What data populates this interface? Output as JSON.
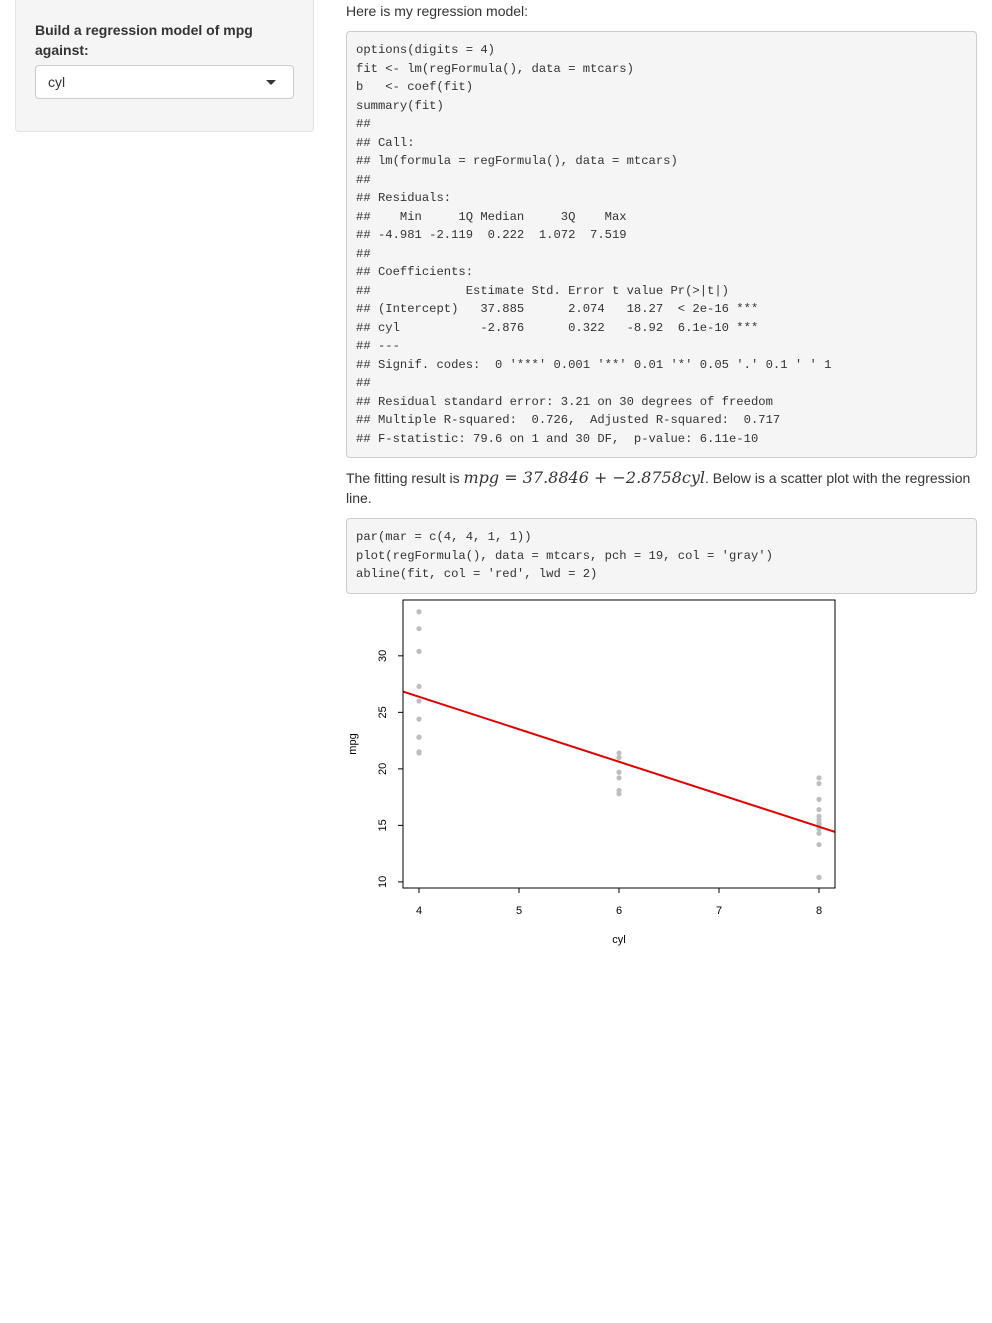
{
  "sidebar": {
    "label": "Build a regression model of mpg against:",
    "select_value": "cyl"
  },
  "main": {
    "intro": "Here is my regression model:",
    "code_model": [
      "options(digits = 4)",
      "fit <- lm(regFormula(), data = mtcars)",
      "b   <- coef(fit)",
      "summary(fit)",
      "##",
      "## Call:",
      "## lm(formula = regFormula(), data = mtcars)",
      "##",
      "## Residuals:",
      "##    Min     1Q Median     3Q    Max",
      "## -4.981 -2.119  0.222  1.072  7.519",
      "##",
      "## Coefficients:",
      "##             Estimate Std. Error t value Pr(>|t|)",
      "## (Intercept)   37.885      2.074   18.27  < 2e-16 ***",
      "## cyl           -2.876      0.322   -8.92  6.1e-10 ***",
      "## ---",
      "## Signif. codes:  0 '***' 0.001 '**' 0.01 '*' 0.05 '.' 0.1 ' ' 1",
      "##",
      "## Residual standard error: 3.21 on 30 degrees of freedom",
      "## Multiple R-squared:  0.726,  Adjusted R-squared:  0.717",
      "## F-statistic: 79.6 on 1 and 30 DF,  p-value: 6.11e-10"
    ],
    "fit_prefix": "The fitting result is ",
    "fit_formula": "mpg = 37.8846 + −2.8758cyl",
    "fit_suffix": ". Below is a scatter plot with the regression line.",
    "code_plot": [
      "par(mar = c(4, 4, 1, 1))",
      "plot(regFormula(), data = mtcars, pch = 19, col = 'gray')",
      "abline(fit, col = 'red', lwd = 2)"
    ]
  },
  "colors": {
    "points": "#bebebe",
    "regression_line": "#dd0000",
    "panel_bg": "#f5f5f5",
    "panel_border": "#cccccc"
  },
  "chart_data": {
    "type": "scatter",
    "title": "",
    "xlabel": "cyl",
    "ylabel": "mpg",
    "xlim": [
      3.84,
      8.16
    ],
    "ylim": [
      9.46,
      34.94
    ],
    "x_ticks": [
      4,
      5,
      6,
      7,
      8
    ],
    "y_ticks": [
      10,
      15,
      20,
      25,
      30
    ],
    "grid": false,
    "legend": "none",
    "points": [
      {
        "x": 4,
        "y": 33.9
      },
      {
        "x": 4,
        "y": 32.4
      },
      {
        "x": 4,
        "y": 30.4
      },
      {
        "x": 4,
        "y": 30.4
      },
      {
        "x": 4,
        "y": 27.3
      },
      {
        "x": 4,
        "y": 26.0
      },
      {
        "x": 4,
        "y": 24.4
      },
      {
        "x": 4,
        "y": 22.8
      },
      {
        "x": 4,
        "y": 22.8
      },
      {
        "x": 4,
        "y": 21.5
      },
      {
        "x": 4,
        "y": 21.4
      },
      {
        "x": 6,
        "y": 21.4
      },
      {
        "x": 6,
        "y": 21.0
      },
      {
        "x": 6,
        "y": 21.0
      },
      {
        "x": 6,
        "y": 19.7
      },
      {
        "x": 6,
        "y": 19.2
      },
      {
        "x": 6,
        "y": 18.1
      },
      {
        "x": 6,
        "y": 17.8
      },
      {
        "x": 8,
        "y": 19.2
      },
      {
        "x": 8,
        "y": 18.7
      },
      {
        "x": 8,
        "y": 17.3
      },
      {
        "x": 8,
        "y": 16.4
      },
      {
        "x": 8,
        "y": 15.8
      },
      {
        "x": 8,
        "y": 15.5
      },
      {
        "x": 8,
        "y": 15.2
      },
      {
        "x": 8,
        "y": 15.2
      },
      {
        "x": 8,
        "y": 15.0
      },
      {
        "x": 8,
        "y": 14.7
      },
      {
        "x": 8,
        "y": 14.3
      },
      {
        "x": 8,
        "y": 13.3
      },
      {
        "x": 8,
        "y": 10.4
      },
      {
        "x": 8,
        "y": 10.4
      }
    ],
    "regression_line": {
      "intercept": 37.8846,
      "slope": -2.8758
    }
  }
}
